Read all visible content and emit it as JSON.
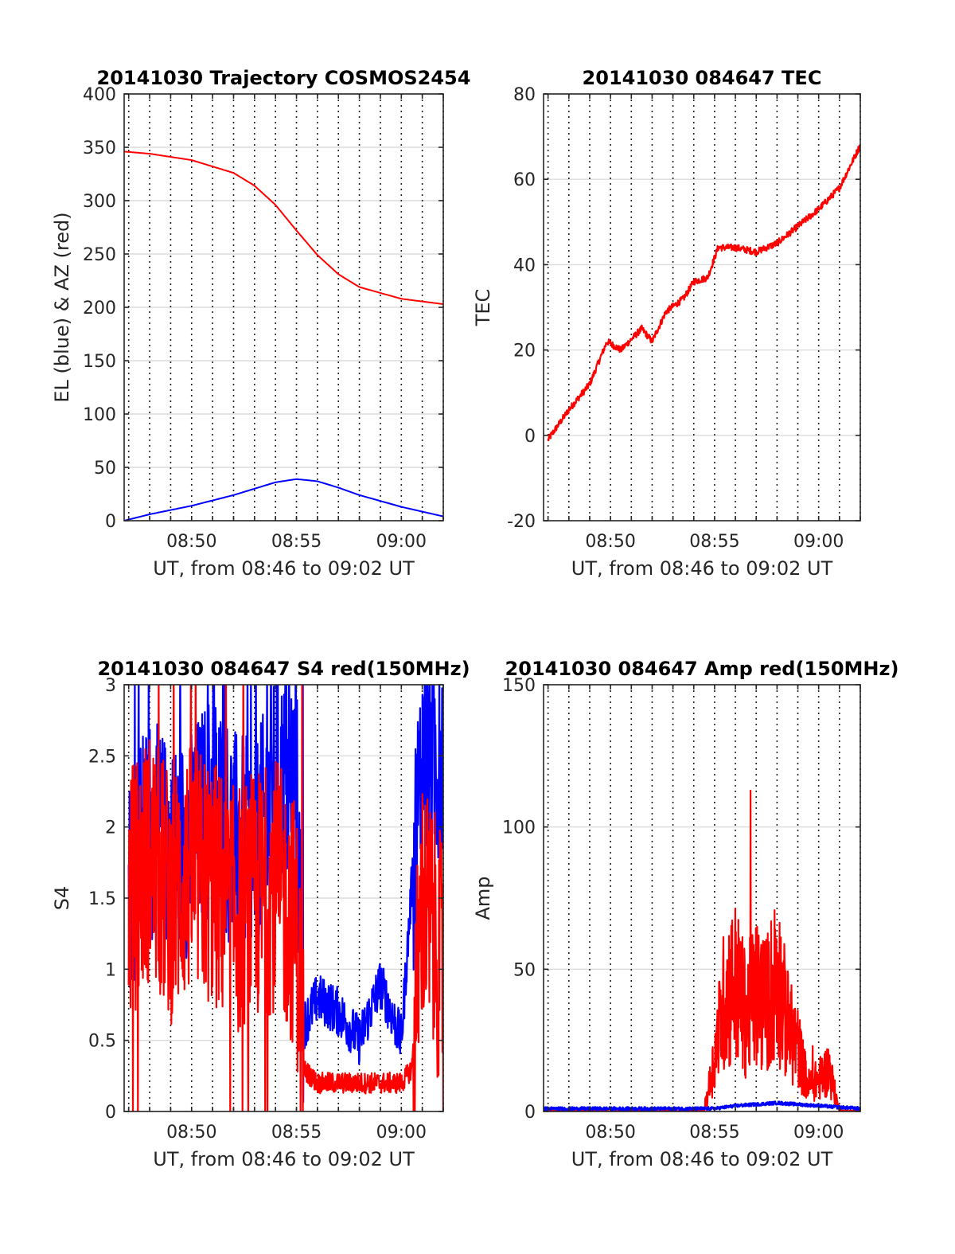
{
  "chart_data": [
    {
      "type": "line",
      "title": "20141030 Trajectory COSMOS2454",
      "xlabel": "UT, from 08:46 to 09:02 UT",
      "ylabel": "EL (blue) & AZ (red)",
      "xlim": [
        "08:46:47",
        "09:02:00"
      ],
      "ylim": [
        0,
        400
      ],
      "yticks": [
        0,
        50,
        100,
        150,
        200,
        250,
        300,
        350,
        400
      ],
      "xticks": [
        "08:50",
        "08:55",
        "09:00"
      ],
      "grid": true,
      "series": [
        {
          "color": "#ff0000",
          "x": [
            "08:46:47",
            "08:48:00",
            "08:50:00",
            "08:52:00",
            "08:53:00",
            "08:54:00",
            "08:55:00",
            "08:56:00",
            "08:57:00",
            "08:58:00",
            "09:00:00",
            "09:02:00"
          ],
          "values": [
            346,
            344,
            338,
            326,
            314,
            296,
            272,
            249,
            231,
            219,
            208,
            203
          ]
        },
        {
          "color": "#0000ff",
          "x": [
            "08:46:47",
            "08:48:00",
            "08:50:00",
            "08:52:00",
            "08:53:00",
            "08:54:00",
            "08:55:00",
            "08:56:00",
            "08:57:00",
            "08:58:00",
            "09:00:00",
            "09:02:00"
          ],
          "values": [
            0,
            6,
            14,
            24,
            30,
            36,
            39,
            37,
            31,
            24,
            13,
            4
          ]
        }
      ]
    },
    {
      "type": "line",
      "title": "20141030 084647 TEC",
      "xlabel": "UT, from 08:46 to 09:02 UT",
      "ylabel": "TEC",
      "xlim": [
        "08:46:47",
        "09:02:00"
      ],
      "ylim": [
        -20,
        80
      ],
      "yticks": [
        -20,
        0,
        20,
        40,
        60,
        80
      ],
      "xticks": [
        "08:50",
        "08:55",
        "09:00"
      ],
      "grid": true,
      "series": [
        {
          "color": "#ff0000",
          "x": [
            "08:47:00",
            "08:48:00",
            "08:49:00",
            "08:49:50",
            "08:50:30",
            "08:51:30",
            "08:52:00",
            "08:52:40",
            "08:53:30",
            "08:54:00",
            "08:54:40",
            "08:55:10",
            "08:56:00",
            "08:57:00",
            "08:58:00",
            "08:59:00",
            "09:00:00",
            "09:01:00",
            "09:02:00"
          ],
          "values": [
            -1,
            6,
            12,
            22,
            20,
            25,
            22,
            29,
            32,
            36,
            37,
            44,
            44,
            43,
            45,
            49,
            53,
            58,
            68
          ]
        }
      ]
    },
    {
      "type": "line",
      "title": "20141030 084647 S4 red(150MHz)",
      "xlabel": "UT, from 08:46 to 09:02 UT",
      "ylabel": "S4",
      "xlim": [
        "08:46:47",
        "09:02:00"
      ],
      "ylim": [
        0,
        3
      ],
      "yticks": [
        0,
        0.5,
        1,
        1.5,
        2,
        2.5,
        3
      ],
      "xticks": [
        "08:50",
        "08:55",
        "09:00"
      ],
      "grid": true,
      "series": [
        {
          "color": "#0000ff",
          "x": [
            "08:47:00",
            "08:48:00",
            "08:49:00",
            "08:50:00",
            "08:51:00",
            "08:52:00",
            "08:53:00",
            "08:54:00",
            "08:55:00",
            "08:55:20",
            "08:56:00",
            "08:57:00",
            "08:58:00",
            "08:59:00",
            "09:00:00",
            "09:00:30",
            "09:01:00",
            "09:02:00"
          ],
          "values": [
            1.6,
            2.0,
            1.8,
            1.9,
            2.2,
            1.9,
            1.8,
            2.3,
            2.3,
            0.6,
            0.8,
            0.7,
            0.5,
            0.9,
            0.5,
            1.6,
            2.5,
            2.5
          ]
        },
        {
          "color": "#ff0000",
          "x": [
            "08:47:00",
            "08:48:00",
            "08:49:00",
            "08:50:00",
            "08:51:00",
            "08:52:00",
            "08:53:00",
            "08:54:00",
            "08:55:00",
            "08:55:20",
            "08:56:00",
            "08:57:00",
            "08:58:00",
            "08:59:00",
            "09:00:00",
            "09:00:30",
            "09:01:00",
            "09:02:00"
          ],
          "values": [
            1.5,
            1.8,
            1.5,
            1.7,
            1.6,
            1.4,
            1.5,
            1.6,
            1.3,
            0.3,
            0.2,
            0.2,
            0.2,
            0.2,
            0.2,
            0.3,
            1.5,
            1.0
          ]
        }
      ]
    },
    {
      "type": "line",
      "title": "20141030 084647 Amp red(150MHz)",
      "xlabel": "UT, from 08:46 to 09:02 UT",
      "ylabel": "Amp",
      "xlim": [
        "08:46:47",
        "09:02:00"
      ],
      "ylim": [
        0,
        150
      ],
      "yticks": [
        0,
        50,
        100,
        150
      ],
      "xticks": [
        "08:50",
        "08:55",
        "09:00"
      ],
      "grid": true,
      "series": [
        {
          "color": "#ff0000",
          "x": [
            "08:46:47",
            "08:54:30",
            "08:55:00",
            "08:55:30",
            "08:56:00",
            "08:56:30",
            "08:57:00",
            "08:57:30",
            "08:58:00",
            "08:58:30",
            "08:59:00",
            "08:59:30",
            "09:00:00",
            "09:00:30",
            "09:01:00",
            "09:02:00"
          ],
          "values": [
            0,
            0,
            25,
            55,
            60,
            45,
            55,
            50,
            65,
            40,
            30,
            12,
            15,
            20,
            0,
            0
          ]
        },
        {
          "color": "#0000ff",
          "x": [
            "08:46:47",
            "08:50:00",
            "08:55:00",
            "08:56:00",
            "08:58:00",
            "09:00:00",
            "09:02:00"
          ],
          "values": [
            1,
            1,
            1,
            2,
            3,
            2,
            1
          ]
        }
      ]
    }
  ]
}
